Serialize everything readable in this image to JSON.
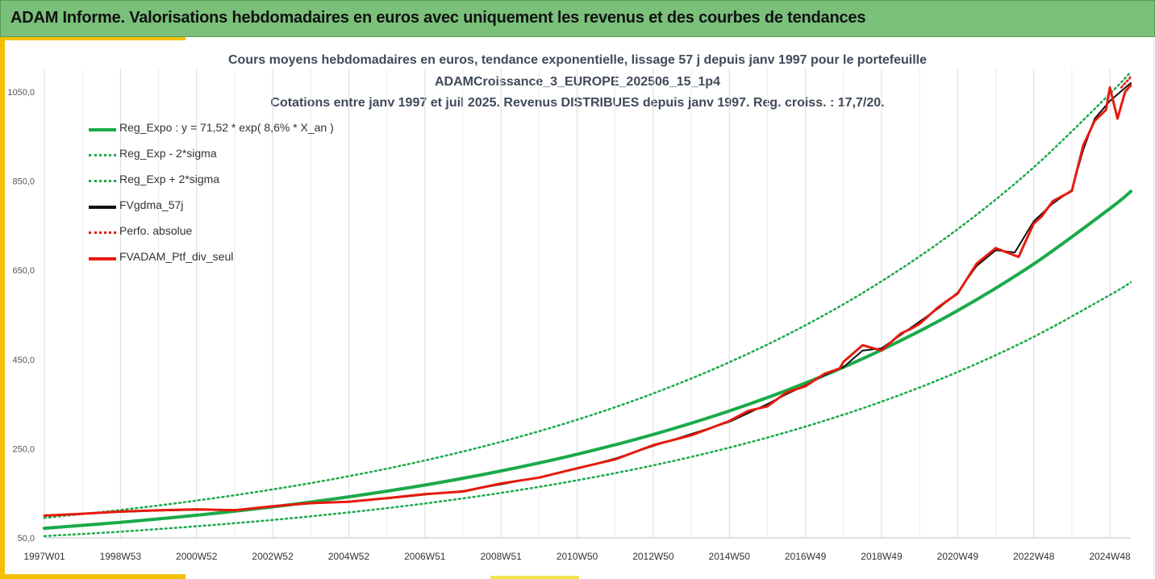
{
  "header": {
    "title": "ADAM Informe. Valorisations hebdomadaires en euros avec uniquement les revenus et des courbes de tendances"
  },
  "colors": {
    "banner": "#7ac07a",
    "accent": "#f2c000",
    "trend_green": "#1aaa4a",
    "series_red": "#e61a0e",
    "series_black": "#111111",
    "grid": "#dcdcdc"
  },
  "chart_data": {
    "type": "line",
    "title_lines": [
      "Cours moyens hebdomadaires en euros, tendance exponentielle, lissage 57 j depuis janv 1997 pour le portefeuille",
      "ADAMCroissance_3_EUROPE_202506_15_1p4",
      "Cotations entre janv 1997 et juil 2025. Revenus DISTRIBUES depuis janv 1997. Reg. croiss. : 17,7/20."
    ],
    "x_range": [
      1997.0,
      2025.55
    ],
    "x_ticks": [
      {
        "label": "1997W01",
        "year": 1997.0
      },
      {
        "label": "1998W53",
        "year": 1999.0
      },
      {
        "label": "2000W52",
        "year": 2001.0
      },
      {
        "label": "2002W52",
        "year": 2003.0
      },
      {
        "label": "2004W52",
        "year": 2005.0
      },
      {
        "label": "2006W51",
        "year": 2007.0
      },
      {
        "label": "2008W51",
        "year": 2009.0
      },
      {
        "label": "2010W50",
        "year": 2011.0
      },
      {
        "label": "2012W50",
        "year": 2013.0
      },
      {
        "label": "2014W50",
        "year": 2015.0
      },
      {
        "label": "2016W49",
        "year": 2017.0
      },
      {
        "label": "2018W49",
        "year": 2019.0
      },
      {
        "label": "2020W49",
        "year": 2021.0
      },
      {
        "label": "2022W48",
        "year": 2023.0
      },
      {
        "label": "2024W48",
        "year": 2025.0
      }
    ],
    "y_range": [
      50,
      1050
    ],
    "y_ticks": [
      "50,0",
      "250,0",
      "450,0",
      "650,0",
      "850,0",
      "1050,0"
    ],
    "y_tick_values": [
      50,
      250,
      450,
      650,
      850,
      1050
    ],
    "grid": true,
    "legend_position": "top-left",
    "legend": [
      {
        "key": "reg",
        "label": "Reg_Expo : y = 71,52 * exp( 8,6% *  X_an )",
        "color": "#1aaa4a",
        "style": "solid"
      },
      {
        "key": "low",
        "label": "Reg_Exp - 2*sigma",
        "color": "#1aaa4a",
        "style": "dotted"
      },
      {
        "key": "high",
        "label": "Reg_Exp + 2*sigma",
        "color": "#1aaa4a",
        "style": "dotted"
      },
      {
        "key": "gdma",
        "label": "FVgdma_57j",
        "color": "#111111",
        "style": "solid"
      },
      {
        "key": "perfo",
        "label": "Perfo. absolue",
        "color": "#e61a0e",
        "style": "dotted"
      },
      {
        "key": "ptf",
        "label": "FVADAM_Ptf_div_seul",
        "color": "#e61a0e",
        "style": "solid"
      }
    ],
    "series": [
      {
        "name": "Reg_Expo : y = 71,52 * exp( 8,6% *  X_an )",
        "key": "reg",
        "x": [
          1997,
          1999,
          2001,
          2003,
          2005,
          2007,
          2009,
          2011,
          2013,
          2015,
          2017,
          2019,
          2021,
          2023,
          2025,
          2025.55
        ],
        "values": [
          71.5,
          84.9,
          100.8,
          119.6,
          142.0,
          168.5,
          200.1,
          237.5,
          281.9,
          334.6,
          397.2,
          471.5,
          559.7,
          664.3,
          788.5,
          827
        ]
      },
      {
        "name": "Reg_Exp - 2*sigma",
        "key": "low",
        "x": [
          1997,
          1999,
          2001,
          2003,
          2005,
          2007,
          2009,
          2011,
          2013,
          2015,
          2017,
          2019,
          2021,
          2023,
          2025,
          2025.55
        ],
        "values": [
          53.9,
          64.0,
          76.0,
          90.2,
          107.1,
          127.1,
          150.9,
          179.1,
          212.6,
          252.3,
          299.5,
          355.5,
          422.0,
          500.9,
          594.6,
          623
        ]
      },
      {
        "name": "Reg_Exp + 2*sigma",
        "key": "high",
        "x": [
          1997,
          1999,
          2001,
          2003,
          2005,
          2007,
          2009,
          2011,
          2013,
          2015,
          2017,
          2019,
          2021,
          2023,
          2025,
          2025.55
        ],
        "values": [
          94.9,
          112.6,
          133.7,
          158.7,
          188.3,
          223.6,
          265.4,
          315.0,
          373.9,
          443.8,
          526.8,
          625.4,
          742.3,
          881.1,
          1045.9,
          1095
        ]
      },
      {
        "name": "FVgdma_57j",
        "key": "gdma",
        "x": [
          1997,
          1998,
          1999,
          2000,
          2001,
          2002,
          2003,
          2004,
          2005,
          2006,
          2007,
          2008,
          2009,
          2010,
          2011,
          2012,
          2013,
          2014,
          2015,
          2015.5,
          2016,
          2016.5,
          2017,
          2017.5,
          2018,
          2018.5,
          2019,
          2019.5,
          2020,
          2020.5,
          2021,
          2021.5,
          2022,
          2022.5,
          2023,
          2023.5,
          2024,
          2024.3,
          2024.6,
          2025,
          2025.55
        ],
        "values": [
          100,
          104,
          108,
          111,
          113,
          113,
          120,
          127,
          132,
          138,
          147,
          155,
          170,
          186,
          205,
          228,
          256,
          283,
          310,
          330,
          350,
          372,
          392,
          415,
          433,
          470,
          475,
          505,
          535,
          565,
          600,
          660,
          695,
          690,
          760,
          800,
          830,
          920,
          990,
          1030,
          1070
        ]
      },
      {
        "name": "Perfo. absolue",
        "key": "perfo",
        "x": [
          2025.3,
          2025.4,
          2025.5,
          2025.55
        ],
        "values": [
          1060,
          1070,
          1078,
          1085
        ]
      },
      {
        "name": "FVADAM_Ptf_div_seul",
        "key": "ptf",
        "x": [
          1997,
          1998,
          1999,
          2000,
          2001,
          2002,
          2003,
          2004,
          2005,
          2006,
          2007,
          2008,
          2009,
          2010,
          2011,
          2012,
          2013,
          2014,
          2015,
          2015.5,
          2016,
          2016.5,
          2017,
          2017.5,
          2017.9,
          2018,
          2018.5,
          2019,
          2019.5,
          2019.8,
          2020,
          2020.5,
          2021,
          2021.5,
          2022,
          2022.3,
          2022.6,
          2023,
          2023.2,
          2023.5,
          2024,
          2024.3,
          2024.6,
          2024.9,
          2025,
          2025.2,
          2025.4,
          2025.55
        ],
        "values": [
          100,
          104,
          109,
          112,
          114,
          112,
          121,
          128,
          131,
          139,
          148,
          154,
          172,
          185,
          206,
          226,
          258,
          280,
          312,
          335,
          345,
          376,
          390,
          418,
          430,
          445,
          482,
          470,
          508,
          520,
          530,
          568,
          598,
          665,
          700,
          690,
          680,
          755,
          770,
          805,
          828,
          930,
          985,
          1010,
          1060,
          990,
          1050,
          1065
        ]
      }
    ]
  }
}
